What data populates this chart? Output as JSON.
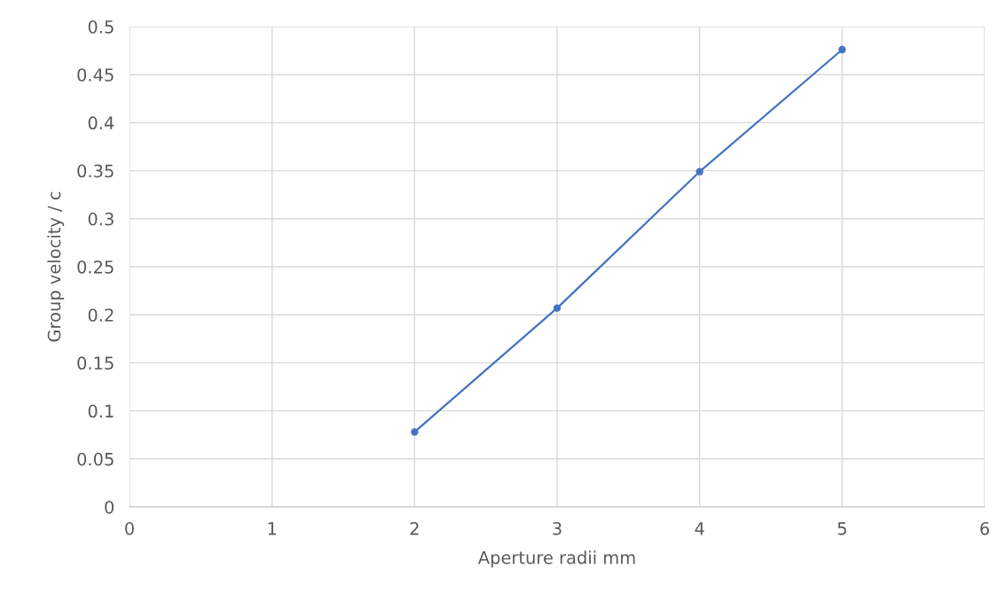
{
  "chart_data": {
    "type": "line",
    "xlabel": "Aperture radii mm",
    "ylabel": "Group velocity / c",
    "x": [
      2,
      3,
      4,
      5
    ],
    "series": [
      {
        "color": "#4472c4",
        "values": [
          0.078,
          0.207,
          0.349,
          0.476
        ]
      }
    ],
    "xlim": [
      0,
      6
    ],
    "xticks": [
      0,
      1,
      2,
      3,
      4,
      5,
      6
    ],
    "ylim": [
      0,
      0.5
    ],
    "yticks": [
      0,
      0.05,
      0.1,
      0.15,
      0.2,
      0.25,
      0.3,
      0.35,
      0.4,
      0.45,
      0.5
    ],
    "grid": true,
    "marker": "circle",
    "line_style": "solid"
  }
}
